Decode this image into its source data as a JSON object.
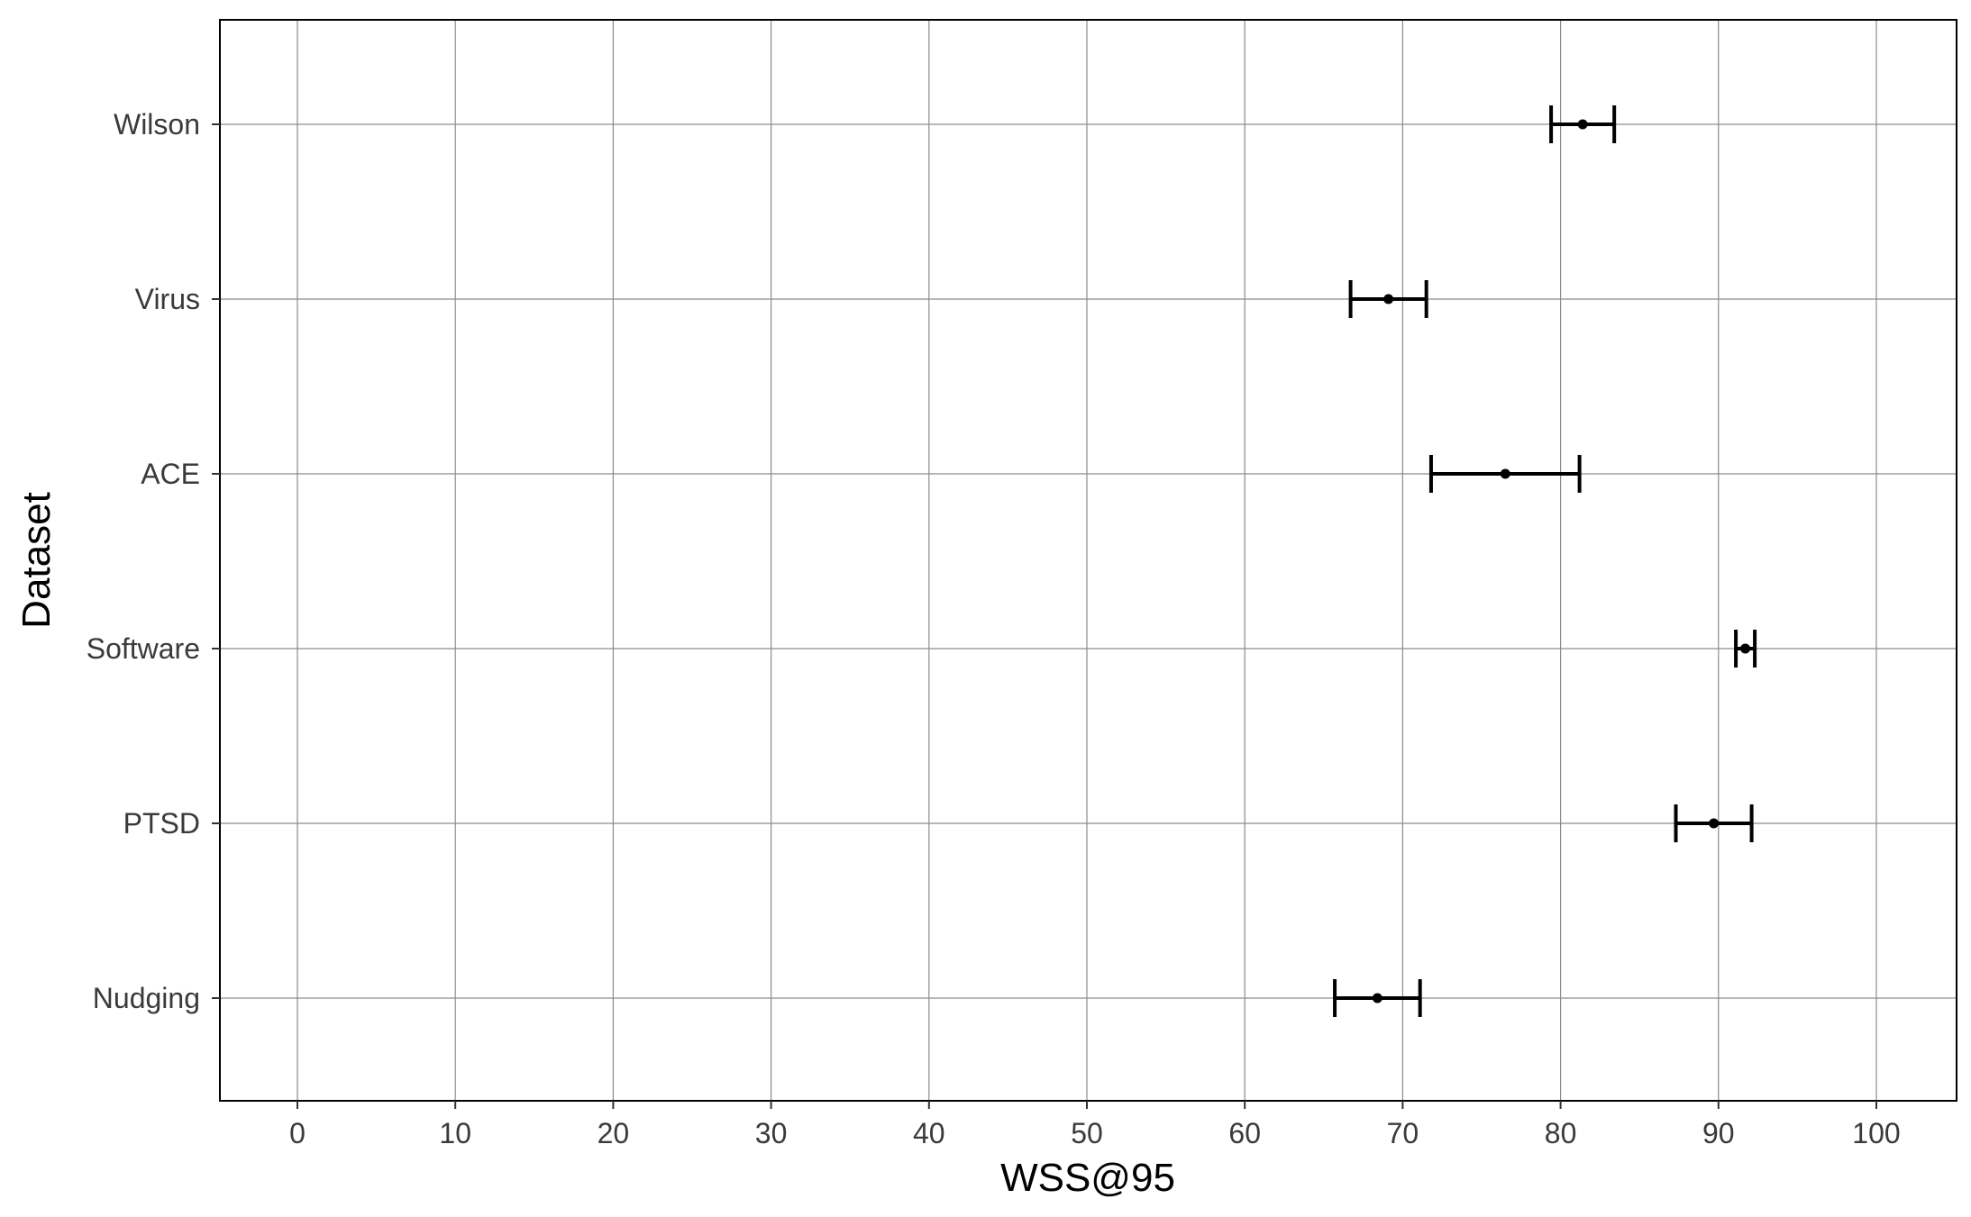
{
  "chart_data": {
    "type": "scatter",
    "title": "",
    "xlabel": "WSS@95",
    "ylabel": "Dataset",
    "xlim": [
      -5,
      105
    ],
    "xticks": [
      0,
      10,
      20,
      30,
      40,
      50,
      60,
      70,
      80,
      90,
      100
    ],
    "grid": true,
    "legend": "none",
    "categories": [
      "Wilson",
      "Virus",
      "ACE",
      "Software",
      "PTSD",
      "Nudging"
    ],
    "points": [
      {
        "label": "Wilson",
        "x": 81.4,
        "lower": 79.4,
        "upper": 83.4
      },
      {
        "label": "Virus",
        "x": 69.1,
        "lower": 66.7,
        "upper": 71.5
      },
      {
        "label": "ACE",
        "x": 76.5,
        "lower": 71.8,
        "upper": 81.2
      },
      {
        "label": "Software",
        "x": 91.7,
        "lower": 91.1,
        "upper": 92.3
      },
      {
        "label": "PTSD",
        "x": 89.7,
        "lower": 87.3,
        "upper": 92.1
      },
      {
        "label": "Nudging",
        "x": 68.4,
        "lower": 65.7,
        "upper": 71.1
      }
    ],
    "colors": {
      "marks": "#000000",
      "grid": "#8c8c8c",
      "text": "#3a3a3a"
    }
  }
}
